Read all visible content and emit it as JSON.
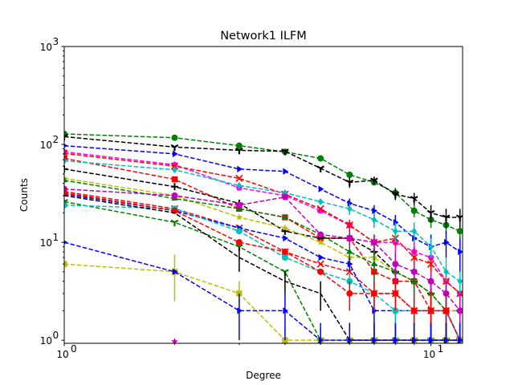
{
  "chart_data": {
    "type": "line",
    "title": "Network1 ILFM",
    "xlabel": "Degree",
    "ylabel": "Counts",
    "xscale": "log",
    "yscale": "log",
    "xlim": [
      1,
      12.2
    ],
    "ylim": [
      0.93,
      1000
    ],
    "x_ticks": [
      {
        "value": 1,
        "base": "10",
        "exp": "0"
      },
      {
        "value": 10,
        "base": "10",
        "exp": "1"
      }
    ],
    "y_ticks": [
      {
        "value": 1,
        "base": "10",
        "exp": "0"
      },
      {
        "value": 10,
        "base": "10",
        "exp": "1"
      },
      {
        "value": 100,
        "base": "10",
        "exp": "2"
      },
      {
        "value": 1000,
        "base": "10",
        "exp": "3"
      }
    ],
    "grid": false,
    "legend": "none",
    "series": [
      {
        "color": "#008000",
        "marker": "circle",
        "x": [
          1,
          2,
          3,
          4,
          5,
          6,
          7,
          8,
          9,
          10,
          11,
          12
        ],
        "y": [
          128,
          117,
          97,
          84,
          72,
          49,
          41,
          32,
          21,
          17,
          15,
          13
        ],
        "err": [
          0,
          0,
          0,
          0,
          0,
          4,
          3,
          4,
          3,
          3,
          3,
          3
        ]
      },
      {
        "color": "#000000",
        "marker": "tri_down",
        "x": [
          1,
          2,
          3,
          4,
          5,
          6,
          7,
          8,
          9,
          10,
          11,
          12
        ],
        "y": [
          120,
          94,
          87,
          85,
          57,
          41,
          43,
          31,
          28,
          20,
          18,
          18
        ],
        "err": [
          0,
          0,
          0,
          0,
          0,
          5,
          4,
          4,
          4,
          4,
          4,
          4
        ]
      },
      {
        "color": "#0000ff",
        "marker": "tri_right",
        "x": [
          1,
          2,
          3,
          4,
          5,
          6,
          7,
          8,
          9,
          10,
          11,
          12
        ],
        "y": [
          97,
          80,
          56,
          53,
          35,
          25,
          21,
          16,
          11,
          9,
          10,
          8
        ],
        "err": [
          0,
          0,
          0,
          0,
          0,
          3,
          3,
          3,
          3,
          3,
          3,
          3
        ]
      },
      {
        "color": "#ff00ff",
        "marker": "pentagon",
        "x": [
          1,
          2,
          3,
          4,
          5,
          6,
          7,
          8,
          9,
          10,
          11,
          12
        ],
        "y": [
          84,
          62,
          36,
          30,
          21,
          15,
          10,
          10,
          8,
          7,
          4,
          3
        ],
        "err": [
          0,
          0,
          0,
          0,
          0,
          2,
          2,
          2,
          2,
          2,
          1,
          1
        ]
      },
      {
        "color": "#ff0000",
        "marker": "x",
        "x": [
          1,
          2,
          3,
          4,
          5,
          6,
          7,
          8,
          9,
          10,
          11,
          12
        ],
        "y": [
          81,
          60,
          45,
          31,
          22,
          15,
          10,
          11,
          7,
          6,
          4,
          3
        ],
        "err": [
          0,
          0,
          0,
          0,
          0,
          2,
          2,
          2,
          2,
          1,
          1,
          1
        ]
      },
      {
        "color": "#ff0000",
        "marker": "square",
        "x": [
          1,
          2,
          3,
          4,
          5,
          6,
          7,
          8,
          9,
          10,
          11,
          12
        ],
        "y": [
          72,
          44,
          22,
          18,
          11,
          11,
          5,
          4,
          4,
          2,
          2,
          1
        ],
        "err": [
          0,
          0,
          0,
          0,
          0,
          2,
          1,
          1,
          1,
          1,
          1,
          0.5
        ]
      },
      {
        "color": "#00bfbf",
        "marker": "diamond",
        "x": [
          1,
          2,
          3,
          4,
          5,
          6,
          7,
          8,
          9,
          10,
          11,
          12
        ],
        "y": [
          68,
          55,
          38,
          32,
          26,
          22,
          17,
          13,
          13,
          9,
          5,
          4
        ],
        "err": [
          0,
          0,
          0,
          0,
          0,
          3,
          3,
          3,
          3,
          2,
          2,
          1
        ]
      },
      {
        "color": "#000000",
        "marker": "plus",
        "x": [
          1,
          2,
          3,
          4,
          5,
          6,
          7,
          8,
          9,
          10,
          11,
          12
        ],
        "y": [
          56,
          37,
          25,
          13,
          11,
          11,
          8,
          5,
          4,
          3,
          2,
          2
        ],
        "err": [
          0,
          0,
          0,
          0,
          0,
          2,
          2,
          1,
          1,
          1,
          1,
          1
        ]
      },
      {
        "color": "#bfbf00",
        "marker": "star",
        "x": [
          1,
          2,
          3,
          4,
          5,
          6,
          7,
          8,
          9,
          10,
          11,
          12
        ],
        "y": [
          45,
          30,
          18,
          14,
          10,
          7,
          7,
          5,
          4,
          3,
          2,
          2
        ],
        "err": [
          0,
          0,
          0,
          0,
          0,
          2,
          2,
          1,
          1,
          1,
          1,
          1
        ]
      },
      {
        "color": "#008000",
        "marker": "tri_up",
        "x": [
          1,
          2,
          3,
          4,
          5,
          6,
          7,
          8,
          9,
          10,
          11,
          12
        ],
        "y": [
          43,
          28,
          22,
          18,
          12,
          8,
          6,
          5,
          4,
          3,
          2,
          1
        ],
        "err": [
          0,
          0,
          0,
          0,
          0,
          2,
          2,
          1,
          1,
          1,
          1,
          0.5
        ]
      },
      {
        "color": "#bf00bf",
        "marker": "circle",
        "x": [
          1,
          2,
          3,
          4,
          5,
          6,
          7,
          8,
          9,
          10,
          11,
          12
        ],
        "y": [
          35,
          30,
          24,
          29,
          12,
          11,
          10,
          6,
          5,
          4,
          3,
          2
        ],
        "err": [
          0,
          0,
          0,
          0,
          0,
          2,
          2,
          2,
          1,
          1,
          1,
          1
        ]
      },
      {
        "color": "#ff0000",
        "marker": "x",
        "x": [
          1,
          2,
          3,
          4,
          5,
          6,
          7,
          8,
          9,
          10,
          11,
          12
        ],
        "y": [
          33,
          22,
          14,
          8,
          6,
          5,
          3,
          3,
          2,
          2,
          2,
          1
        ],
        "err": [
          0,
          0,
          0,
          0,
          0,
          1,
          1,
          1,
          1,
          1,
          1,
          0.5
        ]
      },
      {
        "color": "#0000ff",
        "marker": "tri_right",
        "x": [
          1,
          2,
          3,
          4,
          5,
          6,
          7,
          8,
          9,
          10,
          11,
          12
        ],
        "y": [
          31,
          21,
          14,
          11,
          7,
          6,
          2,
          2,
          2,
          2,
          2,
          1
        ],
        "err": [
          0,
          0,
          0,
          0,
          0,
          1,
          1,
          1,
          1,
          1,
          1,
          0.5
        ]
      },
      {
        "color": "#008000",
        "marker": "tri_down",
        "x": [
          1,
          2,
          3,
          4,
          5,
          6,
          7,
          8,
          9,
          10,
          11,
          12
        ],
        "y": [
          26,
          16,
          9,
          5,
          1,
          1,
          1,
          1,
          1,
          1,
          1,
          1
        ],
        "err": [
          0,
          0,
          0,
          0,
          0,
          0.5,
          0.5,
          0.5,
          0.5,
          0.5,
          0.5,
          0.5
        ]
      },
      {
        "color": "#00bfbf",
        "marker": "circle",
        "x": [
          1,
          2,
          3,
          4,
          5,
          6,
          7,
          8,
          9,
          10,
          11,
          12
        ],
        "y": [
          24,
          22,
          13,
          7,
          5,
          4,
          3,
          2,
          2,
          2,
          2,
          1
        ],
        "err": [
          0,
          0,
          0,
          0,
          0,
          1,
          1,
          1,
          1,
          1,
          1,
          0.5
        ]
      },
      {
        "color": "#ff0000",
        "marker": "circle",
        "x": [
          1,
          2,
          3,
          4,
          5,
          6,
          7,
          8,
          9,
          10,
          11,
          12
        ],
        "y": [
          32,
          21,
          10,
          8,
          5,
          3,
          3,
          3,
          2,
          2,
          2,
          1
        ],
        "err": [
          0,
          0,
          0,
          0,
          0,
          1,
          1,
          1,
          1,
          1,
          1,
          0.5
        ]
      },
      {
        "color": "#bfbf00",
        "marker": "square",
        "x": [
          1,
          2,
          3,
          4,
          5,
          6,
          7,
          8,
          9,
          10,
          11,
          12
        ],
        "y": [
          6,
          5,
          3,
          1,
          1,
          1,
          1,
          1,
          1,
          1,
          1,
          1
        ],
        "err": [
          0,
          2.5,
          1,
          0.3,
          0.3,
          0,
          0,
          0,
          0,
          0,
          0,
          0
        ]
      },
      {
        "color": "#000000",
        "marker": "none",
        "x": [
          1,
          2,
          3,
          4,
          5,
          6,
          7,
          8,
          9,
          10,
          11,
          12
        ],
        "y": [
          30,
          20,
          7,
          4,
          3,
          1,
          1,
          1,
          1,
          1,
          1,
          1
        ],
        "err": [
          0,
          0,
          2,
          1,
          1,
          0.5,
          0.5,
          0.5,
          0.5,
          0.5,
          0.5,
          0.5
        ]
      },
      {
        "color": "#0000ff",
        "marker": "tri_right",
        "x": [
          1,
          2,
          3,
          4,
          5,
          6,
          7,
          8,
          9,
          10,
          11,
          12
        ],
        "y": [
          10,
          5,
          2,
          2,
          1,
          1,
          1,
          1,
          1,
          1,
          1,
          1
        ],
        "err": [
          0,
          0,
          1,
          1,
          0.5,
          0.5,
          0.5,
          0.5,
          0.5,
          0.5,
          0.5,
          0.5
        ]
      },
      {
        "color": "#bf00bf",
        "marker": "star",
        "x": [
          2
        ],
        "y": [
          0.97
        ],
        "err": [
          0
        ]
      }
    ]
  }
}
